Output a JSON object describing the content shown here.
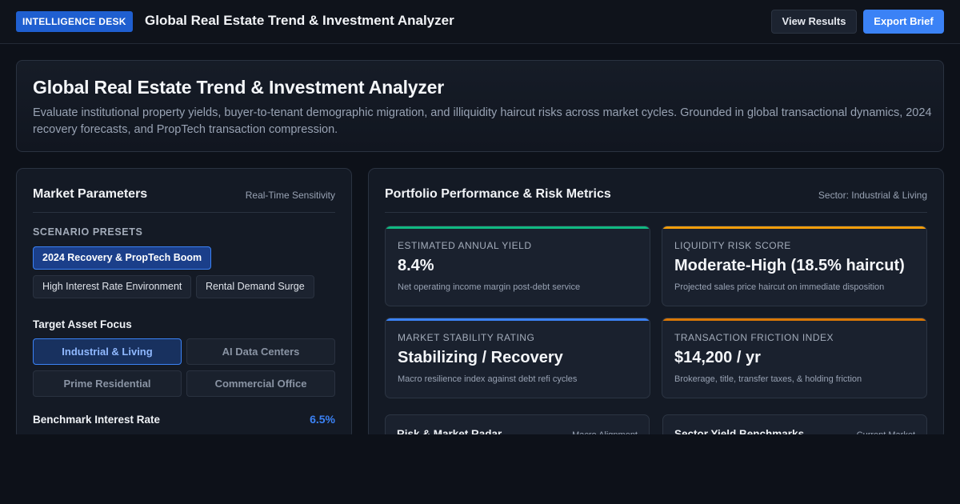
{
  "header": {
    "badge": "INTELLIGENCE DESK",
    "title": "Global Real Estate Trend & Investment Analyzer",
    "view_results": "View Results",
    "export_brief": "Export Brief"
  },
  "hero": {
    "title": "Global Real Estate Trend & Investment Analyzer",
    "description": "Evaluate institutional property yields, buyer-to-tenant demographic migration, and illiquidity haircut risks across market cycles. Grounded in global transactional dynamics, 2024 recovery forecasts, and PropTech transaction compression."
  },
  "market": {
    "title": "Market Parameters",
    "subtitle": "Real-Time Sensitivity",
    "presets_label": "SCENARIO PRESETS",
    "presets": [
      "2024 Recovery & PropTech Boom",
      "High Interest Rate Environment",
      "Rental Demand Surge"
    ],
    "asset_focus_label": "Target Asset Focus",
    "asset_focus": [
      "Industrial & Living",
      "AI Data Centers",
      "Prime Residential",
      "Commercial Office"
    ],
    "rate_label": "Benchmark Interest Rate",
    "rate_value": "6.5%"
  },
  "portfolio": {
    "title": "Portfolio Performance & Risk Metrics",
    "subtitle": "Sector: Industrial & Living",
    "metrics": [
      {
        "caption": "ESTIMATED ANNUAL YIELD",
        "value": "8.4%",
        "note": "Net operating income margin post-debt service",
        "accent": "#10b981"
      },
      {
        "caption": "LIQUIDITY RISK SCORE",
        "value": "Moderate-High (18.5% haircut)",
        "note": "Projected sales price haircut on immediate disposition",
        "accent": "#f59e0b"
      },
      {
        "caption": "MARKET STABILITY RATING",
        "value": "Stabilizing / Recovery",
        "note": "Macro resilience index against debt refi cycles",
        "accent": "#3b82f6"
      },
      {
        "caption": "TRANSACTION FRICTION INDEX",
        "value": "$14,200 / yr",
        "note": "Brokerage, title, transfer taxes, & holding friction",
        "accent": "#d97706"
      }
    ],
    "radar": {
      "title": "Risk & Market Radar",
      "subtitle": "Macro Alignment"
    },
    "benchmarks": {
      "title": "Sector Yield Benchmarks",
      "subtitle": "Current Market"
    }
  },
  "colors": {
    "primary": "#3b82f6",
    "background": "#0d1119",
    "panel": "#141a25"
  }
}
